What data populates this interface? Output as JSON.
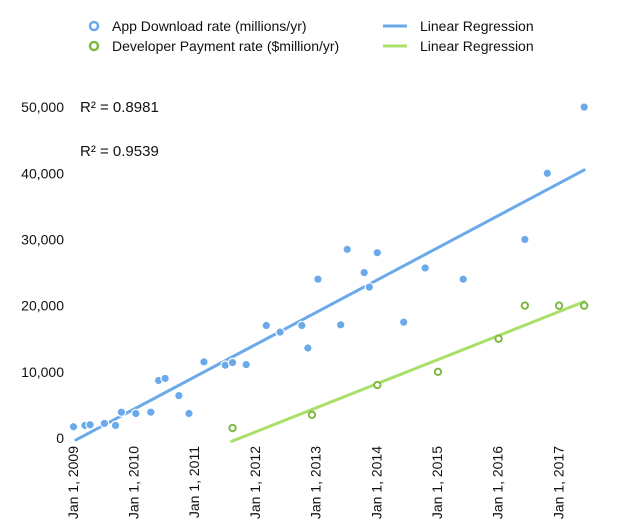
{
  "chart_data": {
    "type": "scatter",
    "colors": {
      "downloads": "#6aa9ea",
      "payments": "#7fb844",
      "downloads_fit": "#6aa9ea",
      "payments_fit": "#a8e06a"
    },
    "legend": {
      "placement": "top",
      "items": [
        {
          "label": "App Download rate (millions/yr)",
          "marker": "circle"
        },
        {
          "label": "Developer Payment rate ($million/yr)",
          "marker": "circle"
        },
        {
          "label": "Linear Regression",
          "marker": "line"
        },
        {
          "label": "Linear Regression",
          "marker": "line"
        }
      ]
    },
    "annotations": [
      "R² = 0.8981",
      "R² = 0.9539"
    ],
    "x_axis": {
      "type": "date",
      "range": [
        "2008-12-15",
        "2017-08-15"
      ],
      "ticks": [
        {
          "date": "2009-01-01",
          "label": "Jan 1, 2009"
        },
        {
          "date": "2010-01-01",
          "label": "Jan 1, 2010"
        },
        {
          "date": "2011-01-01",
          "label": "Jan 1, 2011"
        },
        {
          "date": "2012-01-01",
          "label": "Jan 1, 2012"
        },
        {
          "date": "2013-01-01",
          "label": "Jan 1, 2013"
        },
        {
          "date": "2014-01-01",
          "label": "Jan 1, 2014"
        },
        {
          "date": "2015-01-01",
          "label": "Jan 1, 2015"
        },
        {
          "date": "2016-01-01",
          "label": "Jan 1, 2016"
        },
        {
          "date": "2017-01-01",
          "label": "Jan 1, 2017"
        }
      ]
    },
    "y_axis": {
      "range": [
        0,
        55000
      ],
      "ticks": [
        {
          "value": 0,
          "label": "0"
        },
        {
          "value": 10000,
          "label": "10,000"
        },
        {
          "value": 20000,
          "label": "20,000"
        },
        {
          "value": 30000,
          "label": "30,000"
        },
        {
          "value": 40000,
          "label": "40,000"
        },
        {
          "value": 50000,
          "label": "50,000"
        }
      ]
    },
    "grid": false,
    "series": [
      {
        "key": "downloads",
        "points": [
          {
            "x": "2009-01-05",
            "y": 1700
          },
          {
            "x": "2009-03-15",
            "y": 1900
          },
          {
            "x": "2009-04-15",
            "y": 2000
          },
          {
            "x": "2009-07-10",
            "y": 2200
          },
          {
            "x": "2009-09-15",
            "y": 1900
          },
          {
            "x": "2009-10-20",
            "y": 3900
          },
          {
            "x": "2010-01-15",
            "y": 3700
          },
          {
            "x": "2010-04-15",
            "y": 3900
          },
          {
            "x": "2010-06-01",
            "y": 8700
          },
          {
            "x": "2010-07-10",
            "y": 9000
          },
          {
            "x": "2010-10-01",
            "y": 6400
          },
          {
            "x": "2010-12-01",
            "y": 3700
          },
          {
            "x": "2011-03-01",
            "y": 11500
          },
          {
            "x": "2011-07-07",
            "y": 11000
          },
          {
            "x": "2011-08-20",
            "y": 11400
          },
          {
            "x": "2011-11-10",
            "y": 11100
          },
          {
            "x": "2012-03-10",
            "y": 17000
          },
          {
            "x": "2012-06-01",
            "y": 16000
          },
          {
            "x": "2012-10-10",
            "y": 17000
          },
          {
            "x": "2012-11-15",
            "y": 13600
          },
          {
            "x": "2013-01-15",
            "y": 24000
          },
          {
            "x": "2013-06-01",
            "y": 17100
          },
          {
            "x": "2013-07-10",
            "y": 28500
          },
          {
            "x": "2013-10-20",
            "y": 25000
          },
          {
            "x": "2013-11-20",
            "y": 22800
          },
          {
            "x": "2014-01-07",
            "y": 28000
          },
          {
            "x": "2014-06-15",
            "y": 17500
          },
          {
            "x": "2014-10-22",
            "y": 25700
          },
          {
            "x": "2015-06-08",
            "y": 24000
          },
          {
            "x": "2016-06-13",
            "y": 30000
          },
          {
            "x": "2016-10-26",
            "y": 40000
          },
          {
            "x": "2017-06-05",
            "y": 50000
          }
        ]
      },
      {
        "key": "payments",
        "points": [
          {
            "x": "2011-08-20",
            "y": 1500
          },
          {
            "x": "2012-12-10",
            "y": 3500
          },
          {
            "x": "2014-01-07",
            "y": 8000
          },
          {
            "x": "2015-01-07",
            "y": 10000
          },
          {
            "x": "2016-01-07",
            "y": 15000
          },
          {
            "x": "2016-06-13",
            "y": 20000
          },
          {
            "x": "2017-01-05",
            "y": 20000
          },
          {
            "x": "2017-06-05",
            "y": 20000
          }
        ]
      }
    ],
    "regression_lines": [
      {
        "key": "downloads_fit",
        "from": {
          "x": "2009-01-20",
          "y": -300
        },
        "to": {
          "x": "2017-06-05",
          "y": 40500
        }
      },
      {
        "key": "payments_fit",
        "from": {
          "x": "2011-08-15",
          "y": -500
        },
        "to": {
          "x": "2017-06-05",
          "y": 20600
        }
      }
    ]
  }
}
